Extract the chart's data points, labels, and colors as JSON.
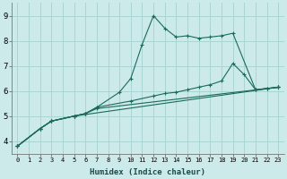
{
  "xlabel": "Humidex (Indice chaleur)",
  "background_color": "#cceaea",
  "line_color": "#1a6b5a",
  "grid_color": "#aad4d4",
  "xlim": [
    -0.5,
    23.5
  ],
  "ylim": [
    3.5,
    9.5
  ],
  "xticks": [
    0,
    1,
    2,
    3,
    4,
    5,
    6,
    7,
    8,
    9,
    10,
    11,
    12,
    13,
    14,
    15,
    16,
    17,
    18,
    19,
    20,
    21,
    22,
    23
  ],
  "yticks": [
    4,
    5,
    6,
    7,
    8,
    9
  ],
  "series": [
    {
      "x": [
        0,
        2,
        3,
        5,
        23
      ],
      "y": [
        3.8,
        4.5,
        4.8,
        5.0,
        6.15
      ]
    },
    {
      "x": [
        0,
        2,
        3,
        5,
        6,
        7,
        23
      ],
      "y": [
        3.8,
        4.5,
        4.8,
        5.0,
        5.1,
        5.3,
        6.15
      ]
    },
    {
      "x": [
        0,
        2,
        3,
        5,
        6,
        7,
        10,
        12,
        13,
        14,
        15,
        16,
        17,
        18,
        19,
        20,
        21,
        22,
        23
      ],
      "y": [
        3.8,
        4.5,
        4.8,
        5.0,
        5.1,
        5.35,
        5.6,
        5.8,
        5.9,
        5.95,
        6.05,
        6.15,
        6.25,
        6.4,
        7.1,
        6.65,
        6.05,
        6.1,
        6.15
      ]
    },
    {
      "x": [
        0,
        2,
        3,
        5,
        6,
        7,
        9,
        10,
        11,
        12,
        13,
        14,
        15,
        16,
        17,
        18,
        19,
        21,
        22,
        23
      ],
      "y": [
        3.8,
        4.5,
        4.8,
        5.0,
        5.1,
        5.35,
        5.95,
        6.5,
        7.85,
        9.0,
        8.5,
        8.15,
        8.2,
        8.1,
        8.15,
        8.2,
        8.3,
        6.05,
        6.1,
        6.15
      ]
    }
  ]
}
